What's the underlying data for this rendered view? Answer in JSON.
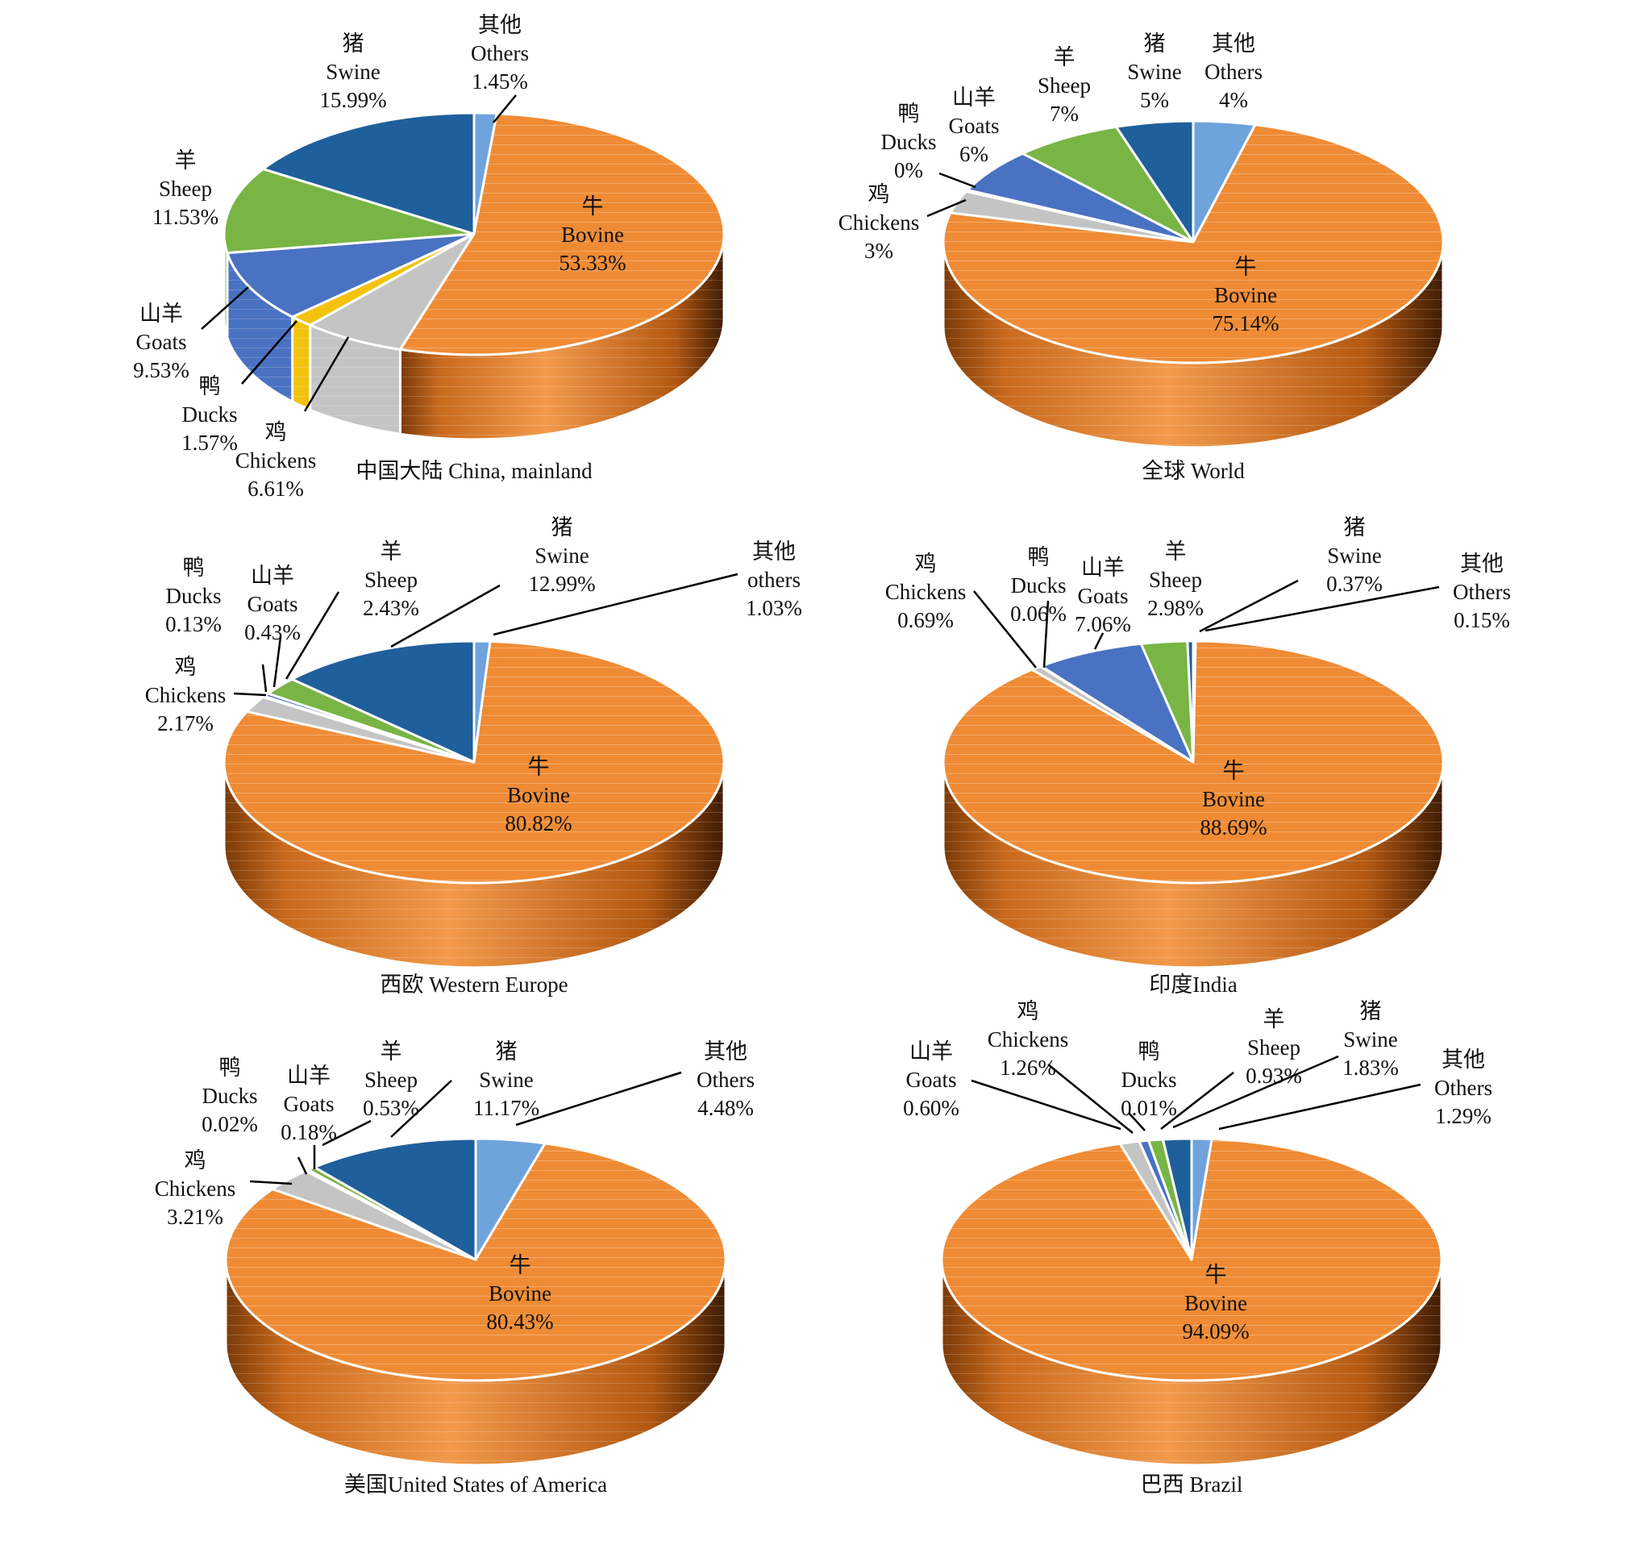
{
  "slice_colors": {
    "Bovine": "#ef8b34",
    "Swine": "#1f5f9c",
    "Sheep": "#78b545",
    "Goats": "#4a72c2",
    "Ducks": "#f2c20c",
    "Chickens": "#c4c4c4",
    "Others": "#6fa3dc"
  },
  "chart_data": [
    {
      "type": "pie",
      "title": "中国大陆 China, mainland",
      "slices": [
        {
          "key": "Others",
          "zh": "其他",
          "en": "Others",
          "label": "1.45%",
          "value": 1.45
        },
        {
          "key": "Bovine",
          "zh": "牛",
          "en": "Bovine",
          "label": "53.33%",
          "value": 53.33
        },
        {
          "key": "Chickens",
          "zh": "鸡",
          "en": "Chickens",
          "label": "6.61%",
          "value": 6.61
        },
        {
          "key": "Ducks",
          "zh": "鸭",
          "en": "Ducks",
          "label": "1.57%",
          "value": 1.57
        },
        {
          "key": "Goats",
          "zh": "山羊",
          "en": "Goats",
          "label": "9.53%",
          "value": 9.53
        },
        {
          "key": "Sheep",
          "zh": "羊",
          "en": "Sheep",
          "label": "11.53%",
          "value": 11.53
        },
        {
          "key": "Swine",
          "zh": "猪",
          "en": "Swine",
          "label": "15.99%",
          "value": 15.99
        }
      ]
    },
    {
      "type": "pie",
      "title": "全球 World",
      "slices": [
        {
          "key": "Others",
          "zh": "其他",
          "en": "Others",
          "label": "4%",
          "value": 4
        },
        {
          "key": "Bovine",
          "zh": "牛",
          "en": "Bovine",
          "label": "75.14%",
          "value": 75.14
        },
        {
          "key": "Chickens",
          "zh": "鸡",
          "en": "Chickens",
          "label": "3%",
          "value": 3
        },
        {
          "key": "Ducks",
          "zh": "鸭",
          "en": "Ducks",
          "label": "0%",
          "value": 0.2
        },
        {
          "key": "Goats",
          "zh": "山羊",
          "en": "Goats",
          "label": "6%",
          "value": 6
        },
        {
          "key": "Sheep",
          "zh": "羊",
          "en": "Sheep",
          "label": "7%",
          "value": 7
        },
        {
          "key": "Swine",
          "zh": "猪",
          "en": "Swine",
          "label": "5%",
          "value": 5
        }
      ]
    },
    {
      "type": "pie",
      "title": "西欧 Western Europe",
      "slices": [
        {
          "key": "Others",
          "zh": "其他",
          "en": "others",
          "label": "1.03%",
          "value": 1.03
        },
        {
          "key": "Bovine",
          "zh": "牛",
          "en": "Bovine",
          "label": "80.82%",
          "value": 80.82
        },
        {
          "key": "Chickens",
          "zh": "鸡",
          "en": "Chickens",
          "label": "2.17%",
          "value": 2.17
        },
        {
          "key": "Ducks",
          "zh": "鸭",
          "en": "Ducks",
          "label": "0.13%",
          "value": 0.13
        },
        {
          "key": "Goats",
          "zh": "山羊",
          "en": "Goats",
          "label": "0.43%",
          "value": 0.43
        },
        {
          "key": "Sheep",
          "zh": "羊",
          "en": "Sheep",
          "label": "2.43%",
          "value": 2.43
        },
        {
          "key": "Swine",
          "zh": "猪",
          "en": "Swine",
          "label": "12.99%",
          "value": 12.99
        }
      ]
    },
    {
      "type": "pie",
      "title": "印度India",
      "slices": [
        {
          "key": "Others",
          "zh": "其他",
          "en": "Others",
          "label": "0.15%",
          "value": 0.15
        },
        {
          "key": "Bovine",
          "zh": "牛",
          "en": "Bovine",
          "label": "88.69%",
          "value": 88.69
        },
        {
          "key": "Chickens",
          "zh": "鸡",
          "en": "Chickens",
          "label": "0.69%",
          "value": 0.69
        },
        {
          "key": "Ducks",
          "zh": "鸭",
          "en": "Ducks",
          "label": "0.06%",
          "value": 0.06
        },
        {
          "key": "Goats",
          "zh": "山羊",
          "en": "Goats",
          "label": "7.06%",
          "value": 7.06
        },
        {
          "key": "Sheep",
          "zh": "羊",
          "en": "Sheep",
          "label": "2.98%",
          "value": 2.98
        },
        {
          "key": "Swine",
          "zh": "猪",
          "en": "Swine",
          "label": "0.37%",
          "value": 0.37
        }
      ]
    },
    {
      "type": "pie",
      "title": "美国United States of America",
      "slices": [
        {
          "key": "Others",
          "zh": "其他",
          "en": "Others",
          "label": "4.48%",
          "value": 4.48
        },
        {
          "key": "Bovine",
          "zh": "牛",
          "en": "Bovine",
          "label": "80.43%",
          "value": 80.43
        },
        {
          "key": "Chickens",
          "zh": "鸡",
          "en": "Chickens",
          "label": "3.21%",
          "value": 3.21
        },
        {
          "key": "Ducks",
          "zh": "鸭",
          "en": "Ducks",
          "label": "0.02%",
          "value": 0.02
        },
        {
          "key": "Goats",
          "zh": "山羊",
          "en": "Goats",
          "label": "0.18%",
          "value": 0.18
        },
        {
          "key": "Sheep",
          "zh": "羊",
          "en": "Sheep",
          "label": "0.53%",
          "value": 0.53
        },
        {
          "key": "Swine",
          "zh": "猪",
          "en": "Swine",
          "label": "11.17%",
          "value": 11.17
        }
      ]
    },
    {
      "type": "pie",
      "title": "巴西  Brazil",
      "slices": [
        {
          "key": "Others",
          "zh": "其他",
          "en": "Others",
          "label": "1.29%",
          "value": 1.29
        },
        {
          "key": "Bovine",
          "zh": "牛",
          "en": "Bovine",
          "label": "94.09%",
          "value": 94.09
        },
        {
          "key": "Chickens",
          "zh": "鸡",
          "en": "Chickens",
          "label": "1.26%",
          "value": 1.26
        },
        {
          "key": "Ducks",
          "zh": "鸭",
          "en": "Ducks",
          "label": "0.01%",
          "value": 0.01
        },
        {
          "key": "Goats",
          "zh": "山羊",
          "en": "Goats",
          "label": "0.60%",
          "value": 0.6
        },
        {
          "key": "Sheep",
          "zh": "羊",
          "en": "Sheep",
          "label": "0.93%",
          "value": 0.93
        },
        {
          "key": "Swine",
          "zh": "猪",
          "en": "Swine",
          "label": "1.83%",
          "value": 1.83
        }
      ]
    }
  ]
}
